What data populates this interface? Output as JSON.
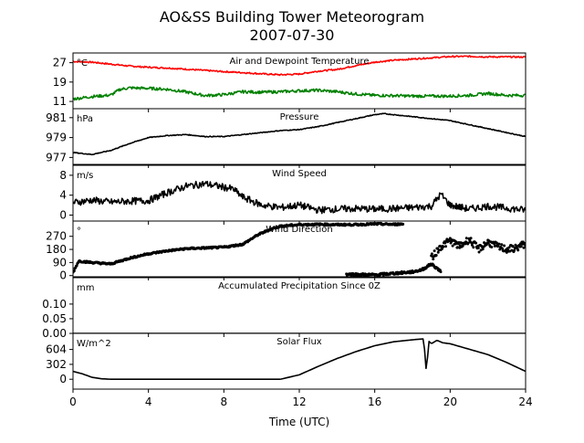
{
  "chart_data": {
    "type": "line",
    "title": "AO&SS Building Tower Meteorogram",
    "subtitle": "2007-07-30",
    "xlabel": "Time (UTC)",
    "xlim": [
      0,
      24
    ],
    "xticks": [
      "0",
      "4",
      "8",
      "12",
      "16",
      "20",
      "24"
    ],
    "panels": [
      {
        "label": "Air and Dewpoint Temperature",
        "unit": "°C",
        "ylim": [
          8,
          31
        ],
        "yticks": [
          {
            "v": 11,
            "t": "11"
          },
          {
            "v": 19,
            "t": "19"
          },
          {
            "v": 27,
            "t": "27"
          }
        ],
        "series": [
          {
            "kind": "line",
            "color": "#ff0000",
            "noise": 0.3,
            "x": [
              0,
              1,
              2,
              3,
              4,
              5,
              6,
              7,
              8,
              9,
              10,
              11,
              12,
              13,
              14,
              15,
              16,
              17,
              18,
              19,
              20,
              21,
              22,
              23,
              24
            ],
            "y": [
              27.5,
              27.2,
              26.4,
              25.6,
              25.1,
              24.8,
              24.3,
              23.8,
              23.3,
              22.9,
              22.4,
              22.0,
              22.3,
              23.5,
              24.2,
              25.8,
              27.2,
              28.0,
              28.5,
              29.0,
              29.5,
              29.6,
              29.4,
              29.4,
              29.3
            ]
          },
          {
            "kind": "line",
            "color": "#008000",
            "noise": 0.6,
            "x": [
              0,
              1,
              2,
              2.5,
              3,
              4,
              5,
              6,
              7,
              8,
              9,
              10,
              11,
              12,
              13,
              14,
              15,
              16,
              17,
              18,
              19,
              20,
              21,
              22,
              23,
              24
            ],
            "y": [
              12.0,
              13.0,
              13.6,
              16.0,
              16.6,
              16.4,
              16.0,
              14.9,
              13.4,
              13.8,
              15.0,
              14.8,
              15.0,
              15.4,
              15.6,
              15.0,
              14.1,
              13.5,
              13.4,
              13.2,
              13.2,
              13.2,
              13.5,
              14.3,
              13.5,
              13.5
            ]
          }
        ]
      },
      {
        "label": "Pressure",
        "unit": "hPa",
        "ylim": [
          976.3,
          981.9
        ],
        "yticks": [
          {
            "v": 977,
            "t": "977"
          },
          {
            "v": 979,
            "t": "979"
          },
          {
            "v": 981,
            "t": "981"
          }
        ],
        "series": [
          {
            "kind": "line",
            "color": "#000000",
            "noise": 0.04,
            "x": [
              0,
              1,
              2,
              3,
              4,
              5,
              6,
              7,
              8,
              9,
              10,
              11,
              12,
              13,
              14,
              15,
              16,
              16.5,
              17,
              18,
              19,
              20,
              21,
              22,
              23,
              24
            ],
            "y": [
              977.5,
              977.3,
              977.7,
              978.4,
              979.0,
              979.2,
              979.3,
              979.1,
              979.1,
              979.3,
              979.5,
              979.7,
              979.8,
              980.1,
              980.5,
              980.9,
              981.3,
              981.4,
              981.3,
              981.1,
              980.9,
              980.7,
              980.3,
              979.9,
              979.5,
              979.1
            ]
          }
        ]
      },
      {
        "label": "Wind Speed",
        "unit": "m/s",
        "ylim": [
          -1.2,
          10
        ],
        "yticks": [
          {
            "v": 0,
            "t": "0"
          },
          {
            "v": 4,
            "t": "4"
          },
          {
            "v": 8,
            "t": "8"
          }
        ],
        "series": [
          {
            "kind": "line",
            "color": "#000000",
            "noise": 0.7,
            "x": [
              0,
              1,
              2,
              3,
              4,
              5,
              6,
              7,
              8,
              8.5,
              9,
              10,
              11,
              12,
              13,
              14,
              15,
              16,
              17,
              18,
              19,
              19.5,
              20,
              21,
              22,
              23,
              24
            ],
            "y": [
              2.5,
              3.0,
              2.6,
              2.8,
              2.9,
              4.5,
              5.8,
              6.3,
              5.6,
              5.2,
              3.6,
              2.0,
              1.5,
              2.0,
              1.0,
              1.2,
              1.3,
              1.2,
              1.3,
              1.5,
              1.8,
              4.2,
              2.0,
              1.2,
              1.8,
              1.4,
              1.0
            ]
          }
        ]
      },
      {
        "label": "Wind Direction",
        "unit": "°",
        "ylim": [
          -8,
          375
        ],
        "yticks": [
          {
            "v": 0,
            "t": "0"
          },
          {
            "v": 90,
            "t": "90"
          },
          {
            "v": 180,
            "t": "180"
          },
          {
            "v": 270,
            "t": "270"
          }
        ],
        "series": [
          {
            "kind": "dots",
            "color": "#000000",
            "noise": 6,
            "x": [
              0,
              0.3,
              1,
              2,
              3,
              4,
              5,
              6,
              7,
              8,
              9,
              9.8,
              10.5,
              11,
              12,
              13,
              14,
              15,
              16,
              17,
              17.5
            ],
            "y": [
              20,
              100,
              90,
              80,
              120,
              150,
              170,
              185,
              190,
              195,
              215,
              280,
              320,
              340,
              350,
              352,
              350,
              350,
              355,
              352,
              355
            ]
          },
          {
            "kind": "dots",
            "color": "#000000",
            "noise": 8,
            "x": [
              14.5,
              15,
              16,
              17,
              17.5,
              18,
              18.5,
              19,
              19.5
            ],
            "y": [
              10,
              8,
              5,
              15,
              20,
              25,
              40,
              80,
              30
            ]
          },
          {
            "kind": "dots",
            "color": "#000000",
            "noise": 25,
            "x": [
              19,
              19.5,
              20,
              20.5,
              21,
              21.5,
              22,
              22.5,
              23,
              23.5,
              24
            ],
            "y": [
              120,
              200,
              240,
              200,
              250,
              180,
              230,
              200,
              180,
              190,
              220
            ]
          }
        ]
      },
      {
        "label": "Accumulated Precipitation Since 0Z",
        "unit": "mm",
        "ylim": [
          0,
          0.19
        ],
        "yticks": [
          {
            "v": 0,
            "t": "0.00"
          },
          {
            "v": 0.05,
            "t": "0.05"
          },
          {
            "v": 0.1,
            "t": "0.10"
          }
        ],
        "series": [
          {
            "kind": "line",
            "color": "#000000",
            "noise": 0,
            "x": [
              0,
              24
            ],
            "y": [
              0,
              0
            ]
          }
        ]
      },
      {
        "label": "Solar Flux",
        "unit": "W/m^2",
        "ylim": [
          -200,
          930
        ],
        "yticks": [
          {
            "v": 0,
            "t": "0"
          },
          {
            "v": 302,
            "t": "302"
          },
          {
            "v": 604,
            "t": "604"
          }
        ],
        "series": [
          {
            "kind": "line",
            "color": "#000000",
            "noise": 0,
            "x": [
              0,
              0.5,
              1,
              1.5,
              2,
              3,
              4,
              5,
              6,
              7,
              8,
              9,
              10,
              11,
              12,
              13,
              14,
              15,
              16,
              17,
              18,
              18.6,
              18.7,
              18.75,
              18.85,
              19,
              19.3,
              19.6,
              20,
              21,
              22,
              23,
              24
            ],
            "y": [
              160,
              110,
              40,
              10,
              0,
              0,
              0,
              0,
              0,
              0,
              0,
              0,
              0,
              0,
              90,
              260,
              420,
              560,
              680,
              760,
              800,
              820,
              300,
              100,
              780,
              720,
              790,
              740,
              720,
              610,
              500,
              340,
              160
            ]
          }
        ]
      }
    ]
  }
}
